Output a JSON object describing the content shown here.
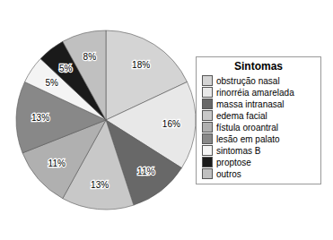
{
  "chart_data": {
    "type": "pie",
    "title": "Sintomas",
    "categories": [
      "obstrução nasal",
      "rinorréia amarelada",
      "massa intranasal",
      "edema facial",
      "fístula oroantral",
      "lesão em palato",
      "sintomas B",
      "proptose",
      "outros"
    ],
    "values": [
      18,
      16,
      11,
      13,
      11,
      13,
      5,
      5,
      8
    ],
    "value_labels": [
      "18%",
      "16%",
      "11%",
      "13%",
      "11%",
      "13%",
      "5%",
      "5%",
      "8%"
    ],
    "colors": [
      "#d4d4d4",
      "#e8e8e8",
      "#686868",
      "#c8c8c8",
      "#b0b0b0",
      "#888888",
      "#f4f4f4",
      "#1a1a1a",
      "#c0c0c0"
    ],
    "data_labels": true,
    "legend": "right"
  }
}
